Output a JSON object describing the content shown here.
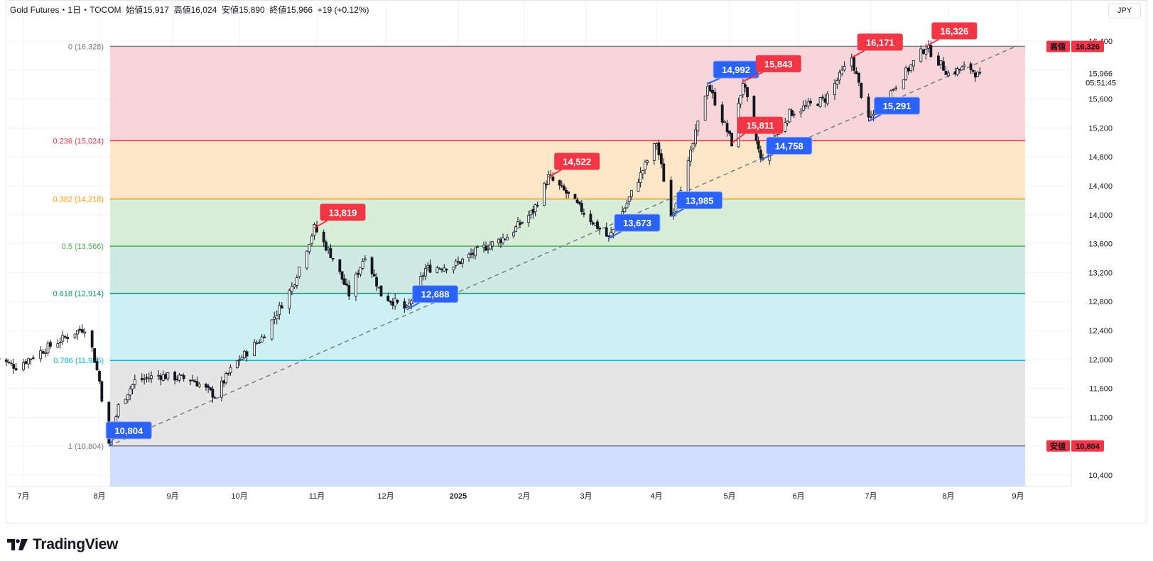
{
  "header": {
    "symbol": "Gold Futures",
    "separator1": "・",
    "interval": "1日",
    "separator2": "・",
    "exchange": "TOCOM",
    "open_label": "始値",
    "open_value": "15,917",
    "high_label": "高値",
    "high_value": "16,024",
    "low_label": "安値",
    "low_value": "15,890",
    "close_label": "終値",
    "close_value": "15,966",
    "change": "+19 (+0.12%)"
  },
  "currency": "JPY",
  "price_axis": {
    "ticks": [
      "16,400",
      "15,600",
      "15,200",
      "14,800",
      "14,400",
      "14,000",
      "13,600",
      "13,200",
      "12,800",
      "12,400",
      "12,000",
      "11,600",
      "11,200",
      "10,400"
    ],
    "last_price": "15,966",
    "countdown": "05:51:45",
    "high_badge_label": "高値",
    "high_badge_value": "16,326",
    "low_badge_label": "安値",
    "low_badge_value": "10,804"
  },
  "time_axis": {
    "labels": [
      "7月",
      "8月",
      "9月",
      "10月",
      "11月",
      "12月",
      "2025",
      "2月",
      "3月",
      "4月",
      "5月",
      "6月",
      "7月",
      "8月",
      "9月"
    ]
  },
  "fib_levels": [
    {
      "label": "0 (16,328)",
      "value": 16328,
      "color": "#787b86"
    },
    {
      "label": "0.236 (15,024)",
      "value": 15024,
      "color": "#f23645"
    },
    {
      "label": "0.382 (14,218)",
      "value": 14218,
      "color": "#ff9800"
    },
    {
      "label": "0.5 (13,566)",
      "value": 13566,
      "color": "#4caf50"
    },
    {
      "label": "0.618 (12,914)",
      "value": 12914,
      "color": "#089981"
    },
    {
      "label": "0.786 (11,986)",
      "value": 11986,
      "color": "#00bcd4"
    },
    {
      "label": "1 (10,804)",
      "value": 10804,
      "color": "#787b86"
    }
  ],
  "fib_zone_colors": [
    "#f7d5d8",
    "#fde7c8",
    "#d9eed9",
    "#cfe9e3",
    "#cdf0f3",
    "#e5e5e5",
    "#d2deff"
  ],
  "callouts": [
    {
      "text": "10,804",
      "type": "low"
    },
    {
      "text": "13,819",
      "type": "high"
    },
    {
      "text": "12,688",
      "type": "low"
    },
    {
      "text": "14,522",
      "type": "high"
    },
    {
      "text": "13,673",
      "type": "low"
    },
    {
      "text": "13,985",
      "type": "low"
    },
    {
      "text": "14,992",
      "type": "low"
    },
    {
      "text": "15,811",
      "type": "high"
    },
    {
      "text": "15,843",
      "type": "high"
    },
    {
      "text": "14,758",
      "type": "low"
    },
    {
      "text": "16,171",
      "type": "high"
    },
    {
      "text": "15,291",
      "type": "low"
    },
    {
      "text": "16,326",
      "type": "high"
    }
  ],
  "chart_data": {
    "type": "candlestick",
    "title": "Gold Futures・1日・TOCOM",
    "currency": "JPY",
    "y_range": [
      10200,
      16500
    ],
    "x_range": [
      "2024-06-20",
      "2025-09-01"
    ],
    "swing_points": [
      {
        "date": "2024-08-05",
        "price": 10804,
        "kind": "low"
      },
      {
        "date": "2024-10-31",
        "price": 13819,
        "kind": "high"
      },
      {
        "date": "2024-12-10",
        "price": 12688,
        "kind": "low"
      },
      {
        "date": "2025-02-12",
        "price": 14522,
        "kind": "high"
      },
      {
        "date": "2025-03-11",
        "price": 13673,
        "kind": "low"
      },
      {
        "date": "2025-04-07",
        "price": 13985,
        "kind": "low"
      },
      {
        "date": "2025-04-22",
        "price": 15811,
        "kind": "high"
      },
      {
        "date": "2025-05-02",
        "price": 14992,
        "kind": "low"
      },
      {
        "date": "2025-05-07",
        "price": 15843,
        "kind": "high"
      },
      {
        "date": "2025-05-15",
        "price": 14758,
        "kind": "low"
      },
      {
        "date": "2025-06-23",
        "price": 16171,
        "kind": "high"
      },
      {
        "date": "2025-06-30",
        "price": 15291,
        "kind": "low"
      },
      {
        "date": "2025-07-23",
        "price": 16326,
        "kind": "high"
      }
    ],
    "trendline": {
      "from": {
        "date": "2024-08-05",
        "price": 10804
      },
      "to": {
        "date": "2025-08-31",
        "price": 16328
      },
      "style": "dashed"
    },
    "last_close": 15966,
    "fib_retracement": {
      "high": 16328,
      "low": 10804
    }
  }
}
